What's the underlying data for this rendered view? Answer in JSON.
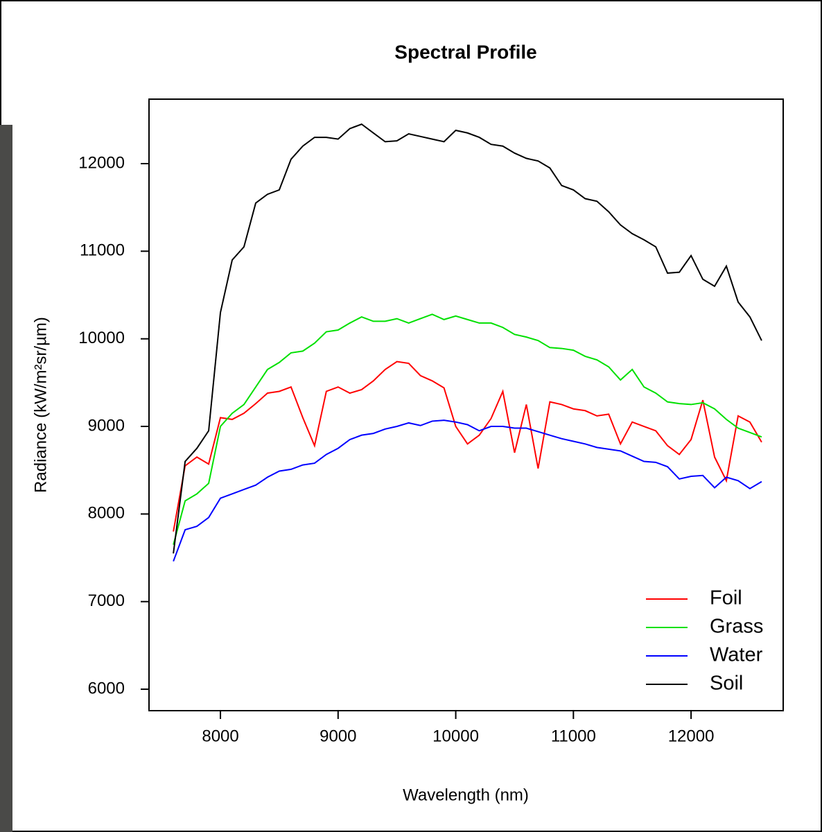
{
  "chart_data": {
    "type": "line",
    "title": "Spectral Profile",
    "x_label": "Wavelength (nm)",
    "y_label": "Radiance (kW/m²sr/µm)",
    "x": [
      7600,
      7700,
      7800,
      7900,
      8000,
      8100,
      8200,
      8300,
      8400,
      8500,
      8600,
      8700,
      8800,
      8900,
      9000,
      9100,
      9200,
      9300,
      9400,
      9500,
      9600,
      9700,
      9800,
      9900,
      10000,
      10100,
      10200,
      10300,
      10400,
      10500,
      10600,
      10700,
      10800,
      10900,
      11000,
      11100,
      11200,
      11300,
      11400,
      11500,
      11600,
      11700,
      11800,
      11900,
      12000,
      12100,
      12200,
      12300,
      12400,
      12500,
      12600
    ],
    "series": [
      {
        "name": "Foil",
        "color": "#ff0000",
        "values": [
          7800,
          8550,
          8650,
          8570,
          9100,
          9080,
          9150,
          9260,
          9380,
          9400,
          9450,
          9100,
          8780,
          9400,
          9450,
          9380,
          9420,
          9520,
          9650,
          9740,
          9720,
          9580,
          9520,
          9440,
          9000,
          8800,
          8900,
          9090,
          9400,
          8700,
          9250,
          8520,
          9280,
          9250,
          9200,
          9180,
          9120,
          9140,
          8800,
          9050,
          9000,
          8950,
          8780,
          8680,
          8850,
          9300,
          8650,
          8380,
          9120,
          9050,
          8820
        ]
      },
      {
        "name": "Grass",
        "color": "#00e000",
        "values": [
          7650,
          8150,
          8230,
          8350,
          9000,
          9150,
          9250,
          9450,
          9650,
          9730,
          9840,
          9860,
          9950,
          10080,
          10100,
          10180,
          10250,
          10200,
          10200,
          10230,
          10180,
          10230,
          10280,
          10220,
          10260,
          10220,
          10180,
          10180,
          10130,
          10050,
          10020,
          9980,
          9900,
          9890,
          9870,
          9800,
          9760,
          9680,
          9530,
          9650,
          9450,
          9380,
          9280,
          9260,
          9250,
          9270,
          9200,
          9080,
          8980,
          8930,
          8880
        ]
      },
      {
        "name": "Water",
        "color": "#0000ff",
        "values": [
          7460,
          7820,
          7860,
          7960,
          8180,
          8230,
          8280,
          8330,
          8420,
          8490,
          8510,
          8560,
          8580,
          8680,
          8750,
          8850,
          8900,
          8920,
          8970,
          9000,
          9040,
          9010,
          9060,
          9070,
          9050,
          9020,
          8950,
          9000,
          9000,
          8980,
          8980,
          8940,
          8900,
          8860,
          8830,
          8800,
          8760,
          8740,
          8720,
          8660,
          8600,
          8590,
          8540,
          8400,
          8430,
          8440,
          8300,
          8420,
          8380,
          8290,
          8370
        ]
      },
      {
        "name": "Soil",
        "color": "#000000",
        "values": [
          7550,
          8600,
          8750,
          8950,
          10300,
          10900,
          11050,
          11550,
          11650,
          11700,
          12050,
          12200,
          12300,
          12300,
          12280,
          12400,
          12450,
          12350,
          12250,
          12260,
          12340,
          12310,
          12280,
          12250,
          12380,
          12350,
          12300,
          12220,
          12200,
          12120,
          12060,
          12030,
          11950,
          11750,
          11700,
          11600,
          11570,
          11450,
          11300,
          11200,
          11130,
          11050,
          10750,
          10760,
          10950,
          10680,
          10600,
          10830,
          10420,
          10250,
          9980
        ]
      }
    ],
    "xlim": [
      7393,
      12783
    ],
    "ylim": [
      5755,
      12736
    ],
    "xticks": [
      8000,
      9000,
      10000,
      11000,
      12000
    ],
    "yticks": [
      6000,
      7000,
      8000,
      9000,
      10000,
      11000,
      12000
    ],
    "legend": "bottom-right"
  }
}
